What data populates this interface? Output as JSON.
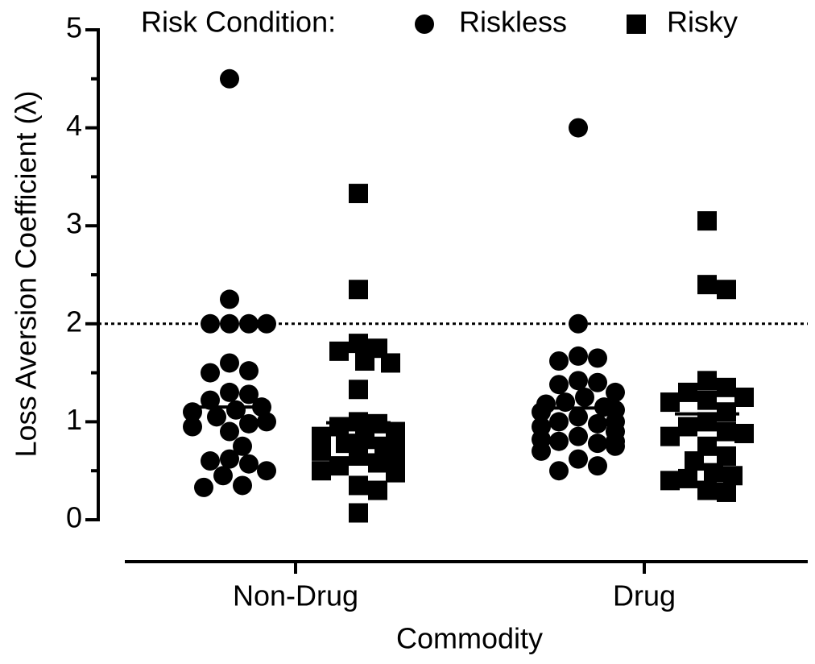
{
  "chart_data": {
    "type": "strip",
    "legend_title": "Risk Condition:",
    "x_label": "Commodity",
    "y_label": "Loss Aversion Coefficient (λ)",
    "categories": [
      "Non-Drug",
      "Drug"
    ],
    "ylim": [
      0,
      5
    ],
    "yticks": [
      0,
      1,
      2,
      3,
      4,
      5
    ],
    "yminorticks": [
      0.5,
      1.5,
      2.5,
      3.5,
      4.5
    ],
    "reference_line": 2,
    "series": [
      {
        "name": "Riskless",
        "marker": "circle",
        "color": "#000000",
        "means": [
          1.15,
          1.14
        ],
        "values": [
          [
            4.5,
            2.25,
            2.0,
            2.0,
            2.0,
            2.0,
            1.6,
            1.52,
            1.5,
            1.3,
            1.28,
            1.22,
            1.15,
            1.12,
            1.1,
            1.05,
            1.0,
            0.98,
            0.95,
            0.9,
            0.75,
            0.62,
            0.6,
            0.57,
            0.5,
            0.45,
            0.35,
            0.33
          ],
          [
            4.0,
            2.0,
            1.67,
            1.65,
            1.62,
            1.42,
            1.4,
            1.38,
            1.3,
            1.25,
            1.2,
            1.18,
            1.15,
            1.12,
            1.1,
            1.05,
            1.0,
            1.0,
            0.98,
            0.95,
            0.9,
            0.85,
            0.82,
            0.8,
            0.8,
            0.78,
            0.75,
            0.7,
            0.62,
            0.55,
            0.5
          ]
        ]
      },
      {
        "name": "Risky",
        "marker": "square",
        "color": "#000000",
        "means": [
          0.99,
          1.08
        ],
        "values": [
          [
            3.33,
            2.35,
            1.8,
            1.75,
            1.72,
            1.62,
            1.6,
            1.33,
            1.0,
            0.98,
            0.95,
            0.9,
            0.85,
            0.82,
            0.78,
            0.75,
            0.72,
            0.7,
            0.68,
            0.65,
            0.62,
            0.58,
            0.55,
            0.5,
            0.48,
            0.35,
            0.3,
            0.07
          ],
          [
            3.05,
            2.4,
            2.35,
            1.42,
            1.35,
            1.3,
            1.25,
            1.22,
            1.2,
            1.1,
            1.0,
            0.95,
            0.9,
            0.88,
            0.85,
            0.75,
            0.65,
            0.6,
            0.48,
            0.45,
            0.42,
            0.4,
            0.3,
            0.28
          ]
        ]
      }
    ]
  }
}
